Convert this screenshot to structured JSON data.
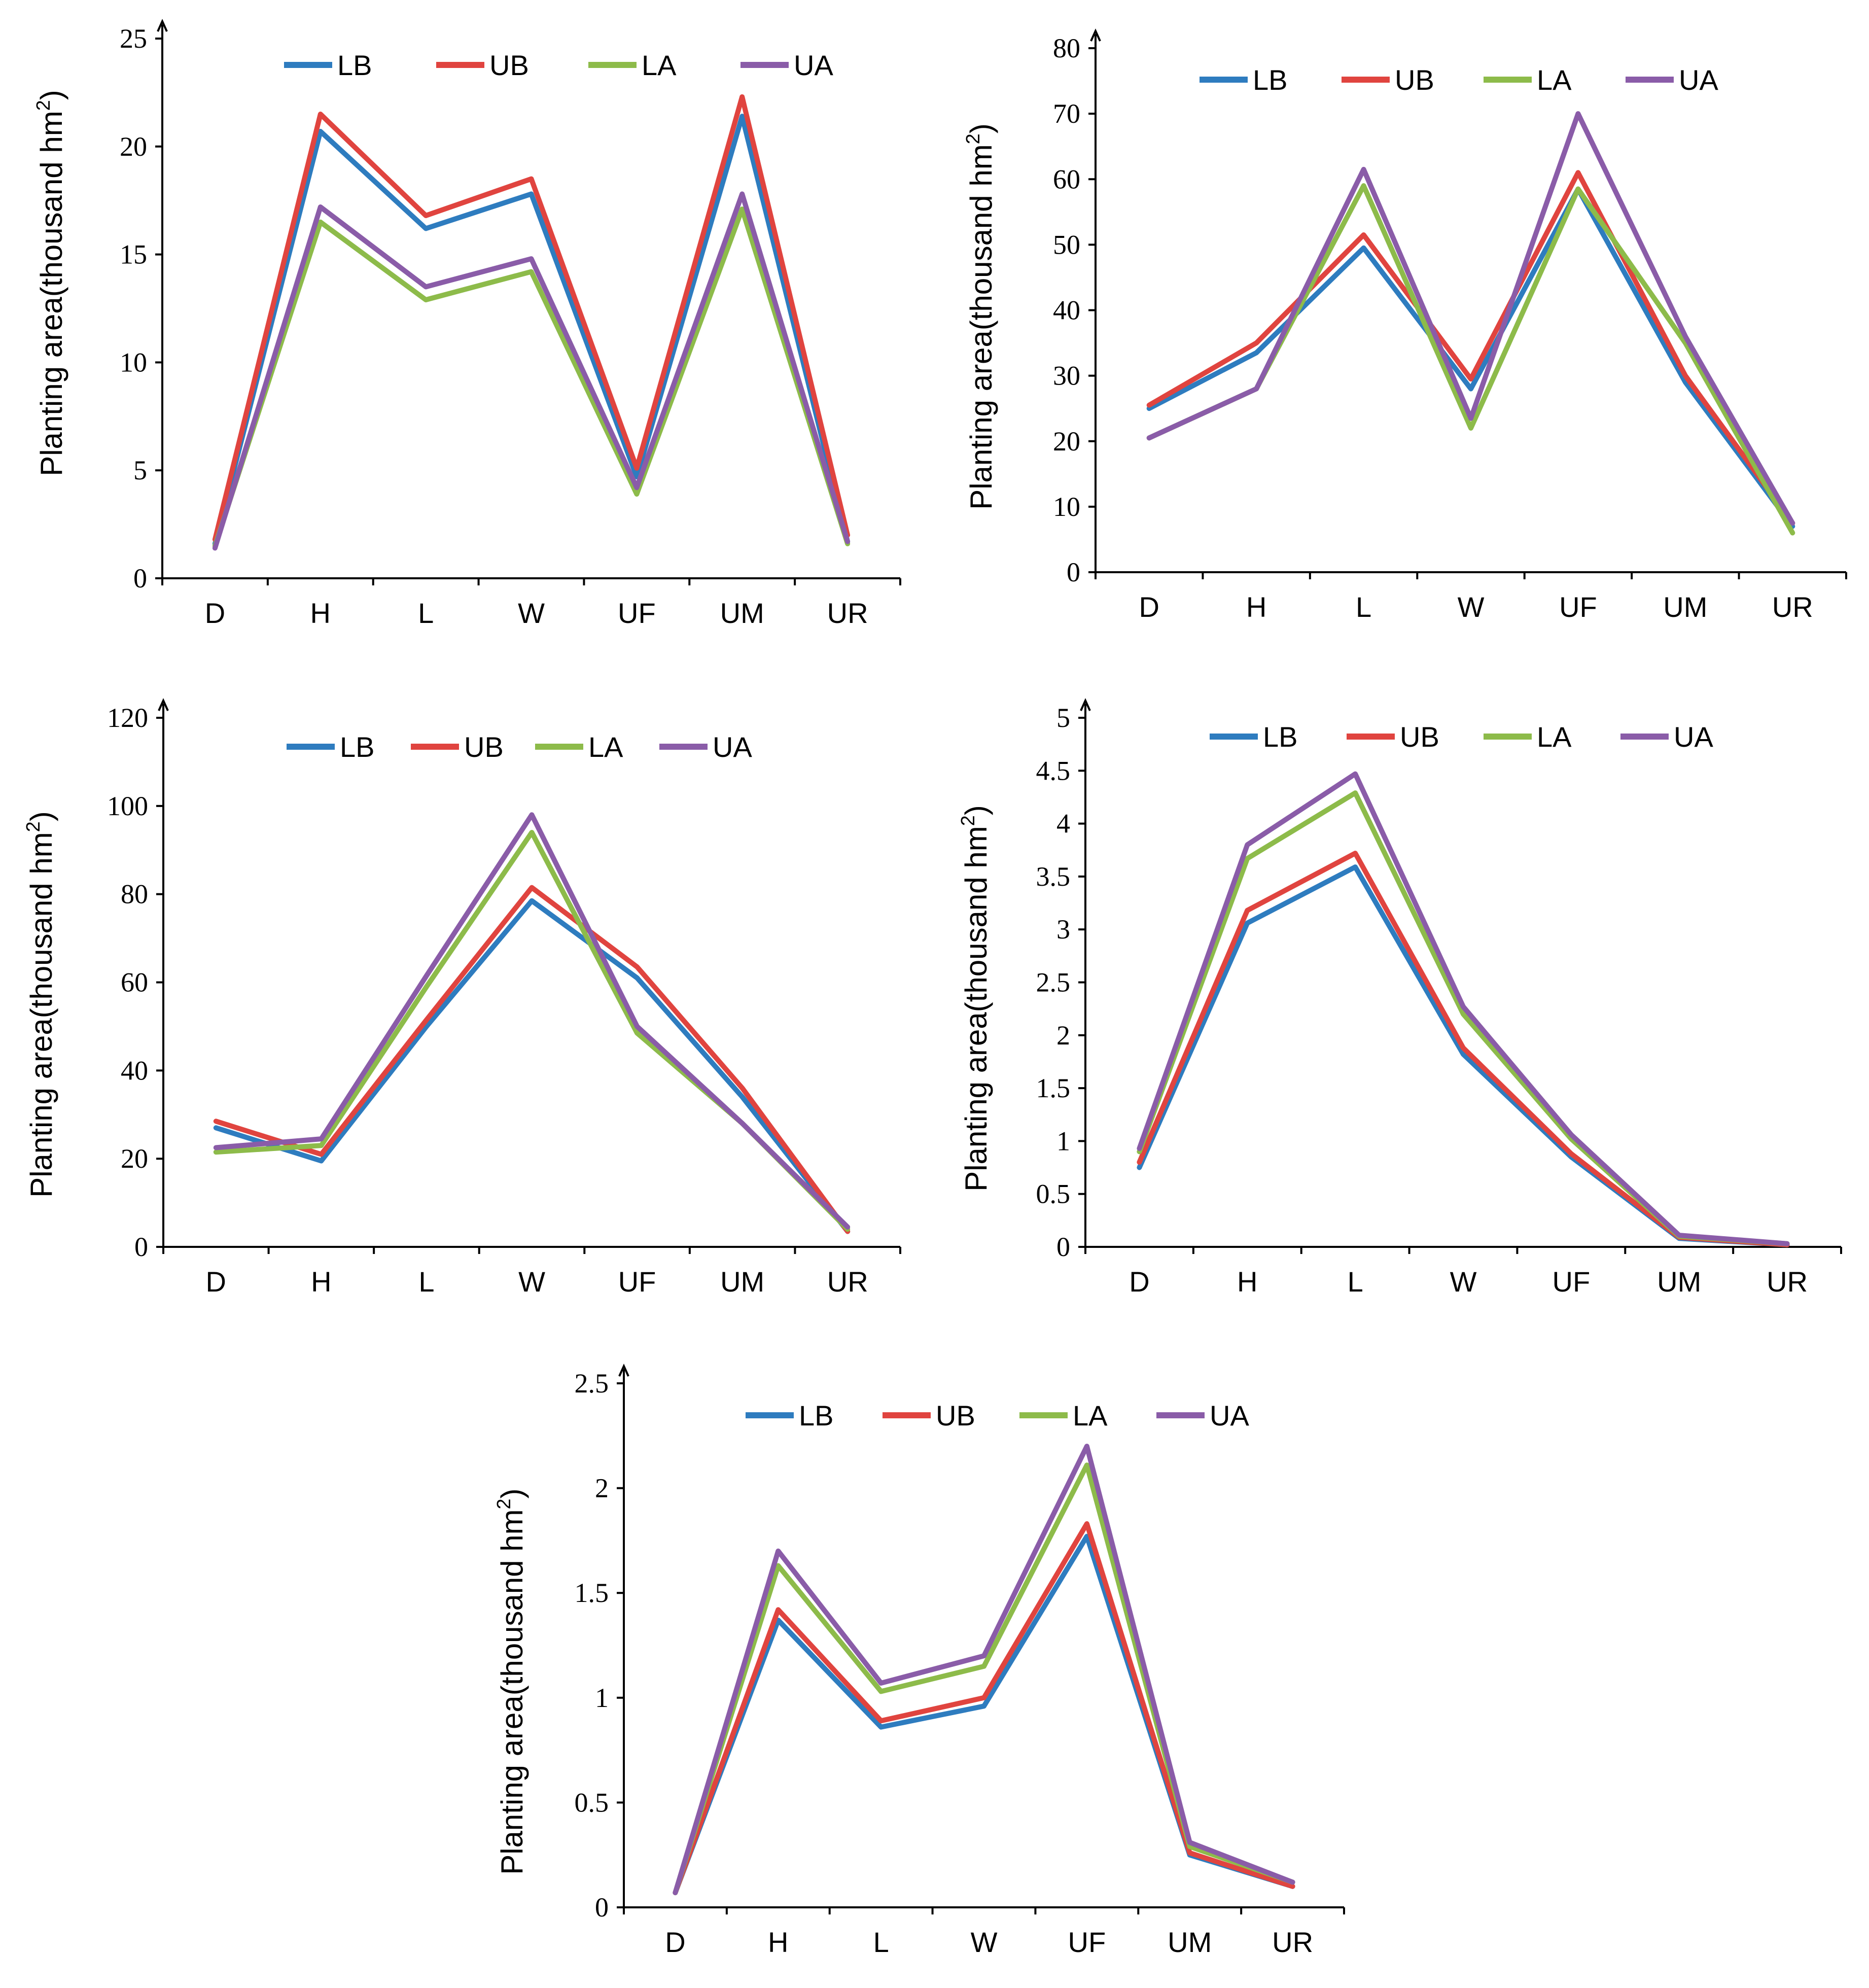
{
  "colors": {
    "LB": "#2e7cbf",
    "UB": "#e0443f",
    "LA": "#8dbb4a",
    "UA": "#8a5ca8"
  },
  "chart_data": [
    {
      "type": "line",
      "categories": [
        "D",
        "H",
        "L",
        "W",
        "UF",
        "UM",
        "UR"
      ],
      "ylabel": "Planting area(thousand hm",
      "ylabel_sup": "2",
      "ylabel_close": ")",
      "ylim": [
        0,
        25
      ],
      "yticks": [
        "0",
        "5",
        "10",
        "15",
        "20",
        "25"
      ],
      "series": [
        {
          "name": "LB",
          "values": [
            1.6,
            20.7,
            16.2,
            17.8,
            4.7,
            21.4,
            1.7
          ]
        },
        {
          "name": "UB",
          "values": [
            1.8,
            21.5,
            16.8,
            18.5,
            5.1,
            22.3,
            2.0
          ]
        },
        {
          "name": "LA",
          "values": [
            1.5,
            16.5,
            12.9,
            14.2,
            3.9,
            17.1,
            1.6
          ]
        },
        {
          "name": "UA",
          "values": [
            1.4,
            17.2,
            13.5,
            14.8,
            4.2,
            17.8,
            1.7
          ]
        }
      ]
    },
    {
      "type": "line",
      "categories": [
        "D",
        "H",
        "L",
        "W",
        "UF",
        "UM",
        "UR"
      ],
      "ylabel": "Planting area(thousand hm",
      "ylabel_sup": "2",
      "ylabel_close": ")",
      "ylim": [
        0,
        80
      ],
      "yticks": [
        "0",
        "10",
        "20",
        "30",
        "40",
        "50",
        "60",
        "70",
        "80"
      ],
      "series": [
        {
          "name": "LB",
          "values": [
            25,
            33.5,
            49.5,
            28,
            58.5,
            29,
            7
          ]
        },
        {
          "name": "UB",
          "values": [
            25.5,
            35,
            51.5,
            29.5,
            61,
            30,
            7.5
          ]
        },
        {
          "name": "LA",
          "values": [
            20.5,
            28,
            59,
            22,
            58.5,
            35,
            6
          ]
        },
        {
          "name": "UA",
          "values": [
            20.5,
            28,
            61.5,
            23.5,
            70,
            36,
            7.5
          ]
        }
      ]
    },
    {
      "type": "line",
      "categories": [
        "D",
        "H",
        "L",
        "W",
        "UF",
        "UM",
        "UR"
      ],
      "ylabel": "Planting area(thousand hm",
      "ylabel_sup": "2",
      "ylabel_close": ")",
      "ylim": [
        0,
        120
      ],
      "yticks": [
        "0",
        "20",
        "40",
        "60",
        "80",
        "100",
        "120"
      ],
      "series": [
        {
          "name": "LB",
          "values": [
            27,
            19.5,
            50,
            78.5,
            61,
            34,
            3.5
          ]
        },
        {
          "name": "UB",
          "values": [
            28.5,
            21,
            51.5,
            81.5,
            63.5,
            36,
            3.5
          ]
        },
        {
          "name": "LA",
          "values": [
            21.5,
            23,
            59,
            94,
            48.5,
            28,
            4
          ]
        },
        {
          "name": "UA",
          "values": [
            22.5,
            24.5,
            61.5,
            98,
            50,
            28,
            4.5
          ]
        }
      ]
    },
    {
      "type": "line",
      "categories": [
        "D",
        "H",
        "L",
        "W",
        "UF",
        "UM",
        "UR"
      ],
      "ylabel": "Planting area(thousand hm",
      "ylabel_sup": "2",
      "ylabel_close": ")",
      "ylim": [
        0,
        5
      ],
      "yticks": [
        "0",
        "0.5",
        "1",
        "1.5",
        "2",
        "2.5",
        "3",
        "3.5",
        "4",
        "4.5",
        "5"
      ],
      "series": [
        {
          "name": "LB",
          "values": [
            0.75,
            3.06,
            3.59,
            1.82,
            0.85,
            0.08,
            0.02
          ]
        },
        {
          "name": "UB",
          "values": [
            0.8,
            3.18,
            3.72,
            1.88,
            0.88,
            0.09,
            0.02
          ]
        },
        {
          "name": "LA",
          "values": [
            0.9,
            3.67,
            4.29,
            2.2,
            1.02,
            0.1,
            0.03
          ]
        },
        {
          "name": "UA",
          "values": [
            0.93,
            3.8,
            4.47,
            2.27,
            1.06,
            0.11,
            0.03
          ]
        }
      ]
    },
    {
      "type": "line",
      "categories": [
        "D",
        "H",
        "L",
        "W",
        "UF",
        "UM",
        "UR"
      ],
      "ylabel": "Planting area(thousand hm",
      "ylabel_sup": "2",
      "ylabel_close": ")",
      "ylim": [
        0,
        2.5
      ],
      "yticks": [
        "0",
        "0.5",
        "1",
        "1.5",
        "2",
        "2.5"
      ],
      "series": [
        {
          "name": "LB",
          "values": [
            0.07,
            1.37,
            0.86,
            0.96,
            1.77,
            0.25,
            0.1
          ]
        },
        {
          "name": "UB",
          "values": [
            0.07,
            1.42,
            0.89,
            1.0,
            1.83,
            0.26,
            0.1
          ]
        },
        {
          "name": "LA",
          "values": [
            0.07,
            1.63,
            1.03,
            1.15,
            2.11,
            0.29,
            0.12
          ]
        },
        {
          "name": "UA",
          "values": [
            0.07,
            1.7,
            1.07,
            1.2,
            2.2,
            0.31,
            0.12
          ]
        }
      ]
    }
  ]
}
